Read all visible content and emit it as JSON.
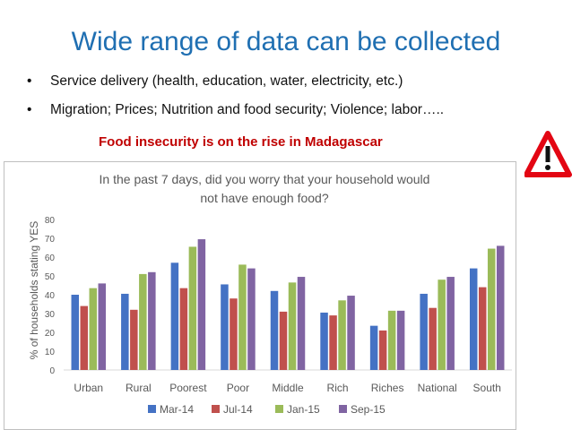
{
  "slide": {
    "title": "Wide range of data can be collected",
    "bullets": [
      "Service delivery (health, education, water, electricity, etc.)",
      "Migration; Prices; Nutrition and food security; Violence; labor….."
    ],
    "subtitle": "Food insecurity is on the rise in Madagascar",
    "warning_icon": "warning-triangle-exclamation"
  },
  "chart_data": {
    "type": "bar",
    "title": "In the past 7 days, did you worry that your household would not have enough food?",
    "title_lines": [
      "In the past 7 days, did you worry that your household would",
      "not have enough food?"
    ],
    "xlabel": "",
    "ylabel": "% of households stating YES",
    "ylim": [
      0,
      80
    ],
    "yticks": [
      0,
      10,
      20,
      30,
      40,
      50,
      60,
      70,
      80
    ],
    "grid": false,
    "legend_position": "bottom",
    "categories": [
      "Urban",
      "Rural",
      "Poorest",
      "Poor",
      "Middle",
      "Rich",
      "Riches",
      "National",
      "South"
    ],
    "series": [
      {
        "name": "Mar-14",
        "color": "#4472c4",
        "values": [
          40,
          40.5,
          57,
          45.5,
          42,
          30.5,
          23.5,
          40.5,
          54
        ]
      },
      {
        "name": "Jul-14",
        "color": "#c0504d",
        "values": [
          34,
          32,
          43.5,
          38,
          31,
          29,
          21,
          33,
          44
        ]
      },
      {
        "name": "Jan-15",
        "color": "#9bbb59",
        "values": [
          43.5,
          51,
          65.5,
          56,
          46.5,
          37,
          31.5,
          48,
          64.5
        ]
      },
      {
        "name": "Sep-15",
        "color": "#8064a2",
        "values": [
          46,
          52,
          69.5,
          54,
          49.5,
          39.5,
          31.5,
          49.5,
          66
        ]
      }
    ]
  }
}
